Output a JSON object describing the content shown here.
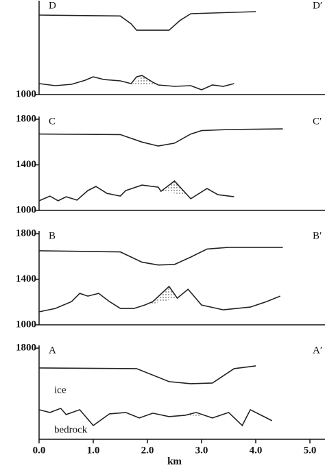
{
  "chart_data": [
    {
      "type": "line",
      "title": "D",
      "title_right": "D′",
      "xlim": [
        0,
        5
      ],
      "ylim": [
        1000,
        1800
      ],
      "yticks": [
        1000
      ],
      "series": [
        {
          "color": "#222",
          "x": [
            0,
            1.5,
            1.7,
            1.8,
            2.4,
            2.6,
            2.8,
            4.0
          ],
          "values": [
            1698,
            1690,
            1620,
            1565,
            1565,
            1650,
            1710,
            1728
          ]
        },
        {
          "color": "#222",
          "x": [
            0,
            0.3,
            0.6,
            0.85,
            1.0,
            1.2,
            1.5,
            1.7,
            1.8,
            1.9,
            2.1,
            2.2,
            2.5,
            2.8,
            3.0,
            3.2,
            3.4,
            3.6
          ],
          "values": [
            1096,
            1078,
            1090,
            1126,
            1156,
            1132,
            1120,
            1096,
            1156,
            1168,
            1108,
            1084,
            1072,
            1078,
            1042,
            1084,
            1072,
            1096
          ]
        }
      ],
      "shade": {
        "x": [
          1.7,
          1.9,
          2.2
        ],
        "y": [
          1084,
          1168,
          1084
        ]
      }
    },
    {
      "type": "line",
      "title": "C",
      "title_right": "C′",
      "xlim": [
        0,
        5
      ],
      "ylim": [
        1000,
        1800
      ],
      "yticks": [
        1000,
        1400,
        1800
      ],
      "series": [
        {
          "color": "#222",
          "x": [
            0,
            1.5,
            1.9,
            2.2,
            2.5,
            2.8,
            3.0,
            3.5,
            4.5
          ],
          "values": [
            1670,
            1665,
            1600,
            1565,
            1590,
            1670,
            1700,
            1710,
            1715
          ]
        },
        {
          "color": "#222",
          "x": [
            0,
            0.2,
            0.35,
            0.5,
            0.7,
            0.9,
            1.05,
            1.25,
            1.5,
            1.6,
            1.9,
            2.2,
            2.25,
            2.5,
            2.8,
            3.1,
            3.3,
            3.6
          ],
          "values": [
            1084,
            1126,
            1084,
            1120,
            1090,
            1174,
            1210,
            1150,
            1126,
            1174,
            1222,
            1204,
            1168,
            1258,
            1102,
            1192,
            1138,
            1120
          ]
        }
      ],
      "shade": {
        "x": [
          2.25,
          2.5,
          2.75
        ],
        "y": [
          1168,
          1258,
          1130
        ]
      }
    },
    {
      "type": "line",
      "title": "B",
      "title_right": "B′",
      "xlim": [
        0,
        5
      ],
      "ylim": [
        1000,
        1800
      ],
      "yticks": [
        1000,
        1400,
        1800
      ],
      "series": [
        {
          "color": "#222",
          "x": [
            0,
            1.5,
            1.9,
            2.2,
            2.5,
            2.8,
            3.1,
            3.5,
            4.5
          ],
          "values": [
            1650,
            1640,
            1550,
            1525,
            1530,
            1595,
            1665,
            1680,
            1680
          ]
        },
        {
          "color": "#222",
          "x": [
            0,
            0.3,
            0.6,
            0.75,
            0.9,
            1.1,
            1.3,
            1.5,
            1.75,
            1.95,
            2.1,
            2.4,
            2.55,
            2.75,
            3.0,
            3.4,
            3.9,
            4.2,
            4.45
          ],
          "values": [
            1114,
            1144,
            1204,
            1276,
            1252,
            1276,
            1204,
            1144,
            1144,
            1174,
            1204,
            1337,
            1234,
            1312,
            1174,
            1132,
            1156,
            1204,
            1252
          ]
        }
      ],
      "shade": {
        "x": [
          2.0,
          2.4,
          2.55
        ],
        "y": [
          1174,
          1337,
          1234
        ]
      }
    },
    {
      "type": "line",
      "title": "A",
      "title_right": "A′",
      "xlim": [
        0,
        5
      ],
      "ylim": [
        1000,
        1800
      ],
      "yticks": [
        1800
      ],
      "xticks": [
        {
          "value": 0,
          "label": "0.0"
        },
        {
          "value": 1,
          "label": "1.0"
        },
        {
          "value": 2,
          "label": "2.0"
        },
        {
          "value": 3,
          "label": "3.0"
        },
        {
          "value": 4,
          "label": "4.0"
        },
        {
          "value": 5,
          "label": "5.0"
        }
      ],
      "xlabel": "km",
      "series": [
        {
          "name": "ice",
          "color": "#222",
          "x": [
            0,
            1.8,
            2.4,
            2.8,
            3.2,
            3.6,
            4.0
          ],
          "values": [
            1626,
            1620,
            1506,
            1488,
            1494,
            1620,
            1644
          ]
        },
        {
          "name": "bedrock",
          "color": "#222",
          "x": [
            0,
            0.2,
            0.4,
            0.5,
            0.75,
            1.0,
            1.3,
            1.6,
            1.85,
            2.1,
            2.4,
            2.7,
            2.9,
            3.2,
            3.5,
            3.75,
            3.9,
            4.1,
            4.3
          ],
          "values": [
            1259,
            1235,
            1271,
            1217,
            1259,
            1121,
            1223,
            1235,
            1187,
            1229,
            1199,
            1211,
            1235,
            1187,
            1235,
            1121,
            1259,
            1211,
            1163
          ]
        }
      ],
      "shade": {
        "x": [
          2.7,
          2.85,
          3.0
        ],
        "y": [
          1211,
          1235,
          1205
        ]
      }
    }
  ]
}
